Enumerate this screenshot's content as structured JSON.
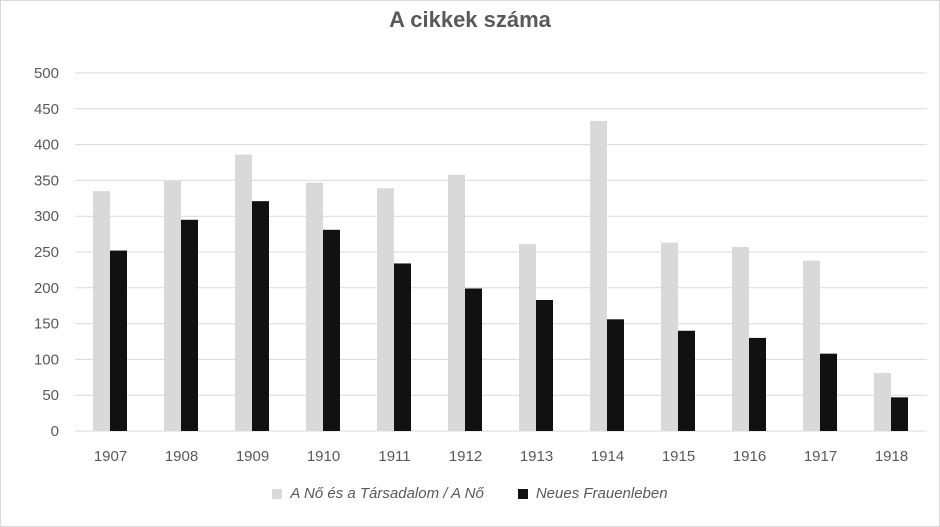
{
  "chart_data": {
    "type": "bar",
    "title": "A cikkek száma",
    "categories": [
      "1907",
      "1908",
      "1909",
      "1910",
      "1911",
      "1912",
      "1913",
      "1914",
      "1915",
      "1916",
      "1917",
      "1918"
    ],
    "series": [
      {
        "name": "A Nő és a Társadalom / A Nő",
        "color": "#d9d9d9",
        "values": [
          335,
          349,
          386,
          347,
          339,
          358,
          261,
          433,
          263,
          257,
          238,
          81
        ]
      },
      {
        "name": "Neues Frauenleben",
        "color": "#111111",
        "values": [
          252,
          295,
          321,
          281,
          234,
          199,
          183,
          156,
          140,
          130,
          108,
          47
        ]
      }
    ],
    "ylim": [
      0,
      500
    ],
    "yticks": [
      0,
      50,
      100,
      150,
      200,
      250,
      300,
      350,
      400,
      450,
      500
    ],
    "grid": true,
    "legend_position": "bottom"
  }
}
